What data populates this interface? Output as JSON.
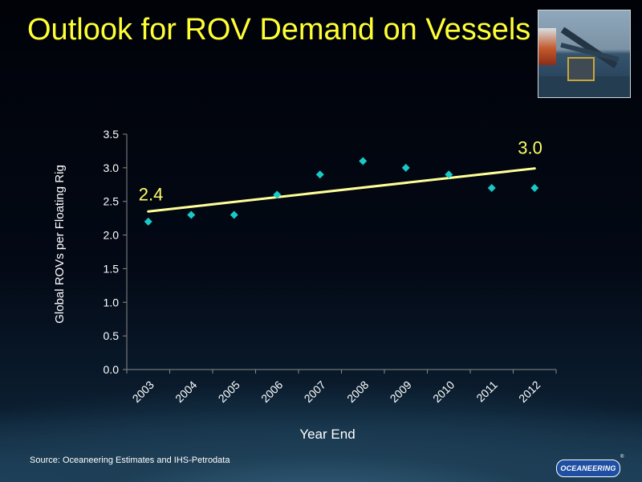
{
  "slide": {
    "title": "Outlook for ROV Demand on Vessels",
    "source": "Source:  Oceaneering Estimates and IHS-Petrodata",
    "logo_text": "OCEANEERING",
    "logo_mark": "®",
    "photo": "rov-launch-vessel-photo"
  },
  "chart_data": {
    "type": "scatter",
    "title": "",
    "xlabel": "Year End",
    "ylabel": "Global ROVs per Floating Rig",
    "categories": [
      "2003",
      "2004",
      "2005",
      "2006",
      "2007",
      "2008",
      "2009",
      "2010",
      "2011",
      "2012"
    ],
    "series": [
      {
        "values": [
          2.2,
          2.3,
          2.3,
          2.6,
          2.9,
          3.1,
          3.0,
          2.9,
          2.7,
          2.7
        ]
      }
    ],
    "trendline": {
      "start": 2.35,
      "end": 2.99
    },
    "annotations": [
      "2.4",
      "3.0"
    ],
    "ylim": [
      0,
      3.5
    ],
    "yticks": [
      0.0,
      0.5,
      1.0,
      1.5,
      2.0,
      2.5,
      3.0,
      3.5
    ],
    "yticklabels": [
      "0.0",
      "0.5",
      "1.0",
      "1.5",
      "2.0",
      "2.5",
      "3.0",
      "3.5"
    ],
    "grid": false,
    "legend": "none",
    "colors": {
      "points": "#19c8c8",
      "trend": "#ffff99",
      "annotation": "#ffff66",
      "axis": "#8a8a8a",
      "text": "#ffffff"
    }
  }
}
